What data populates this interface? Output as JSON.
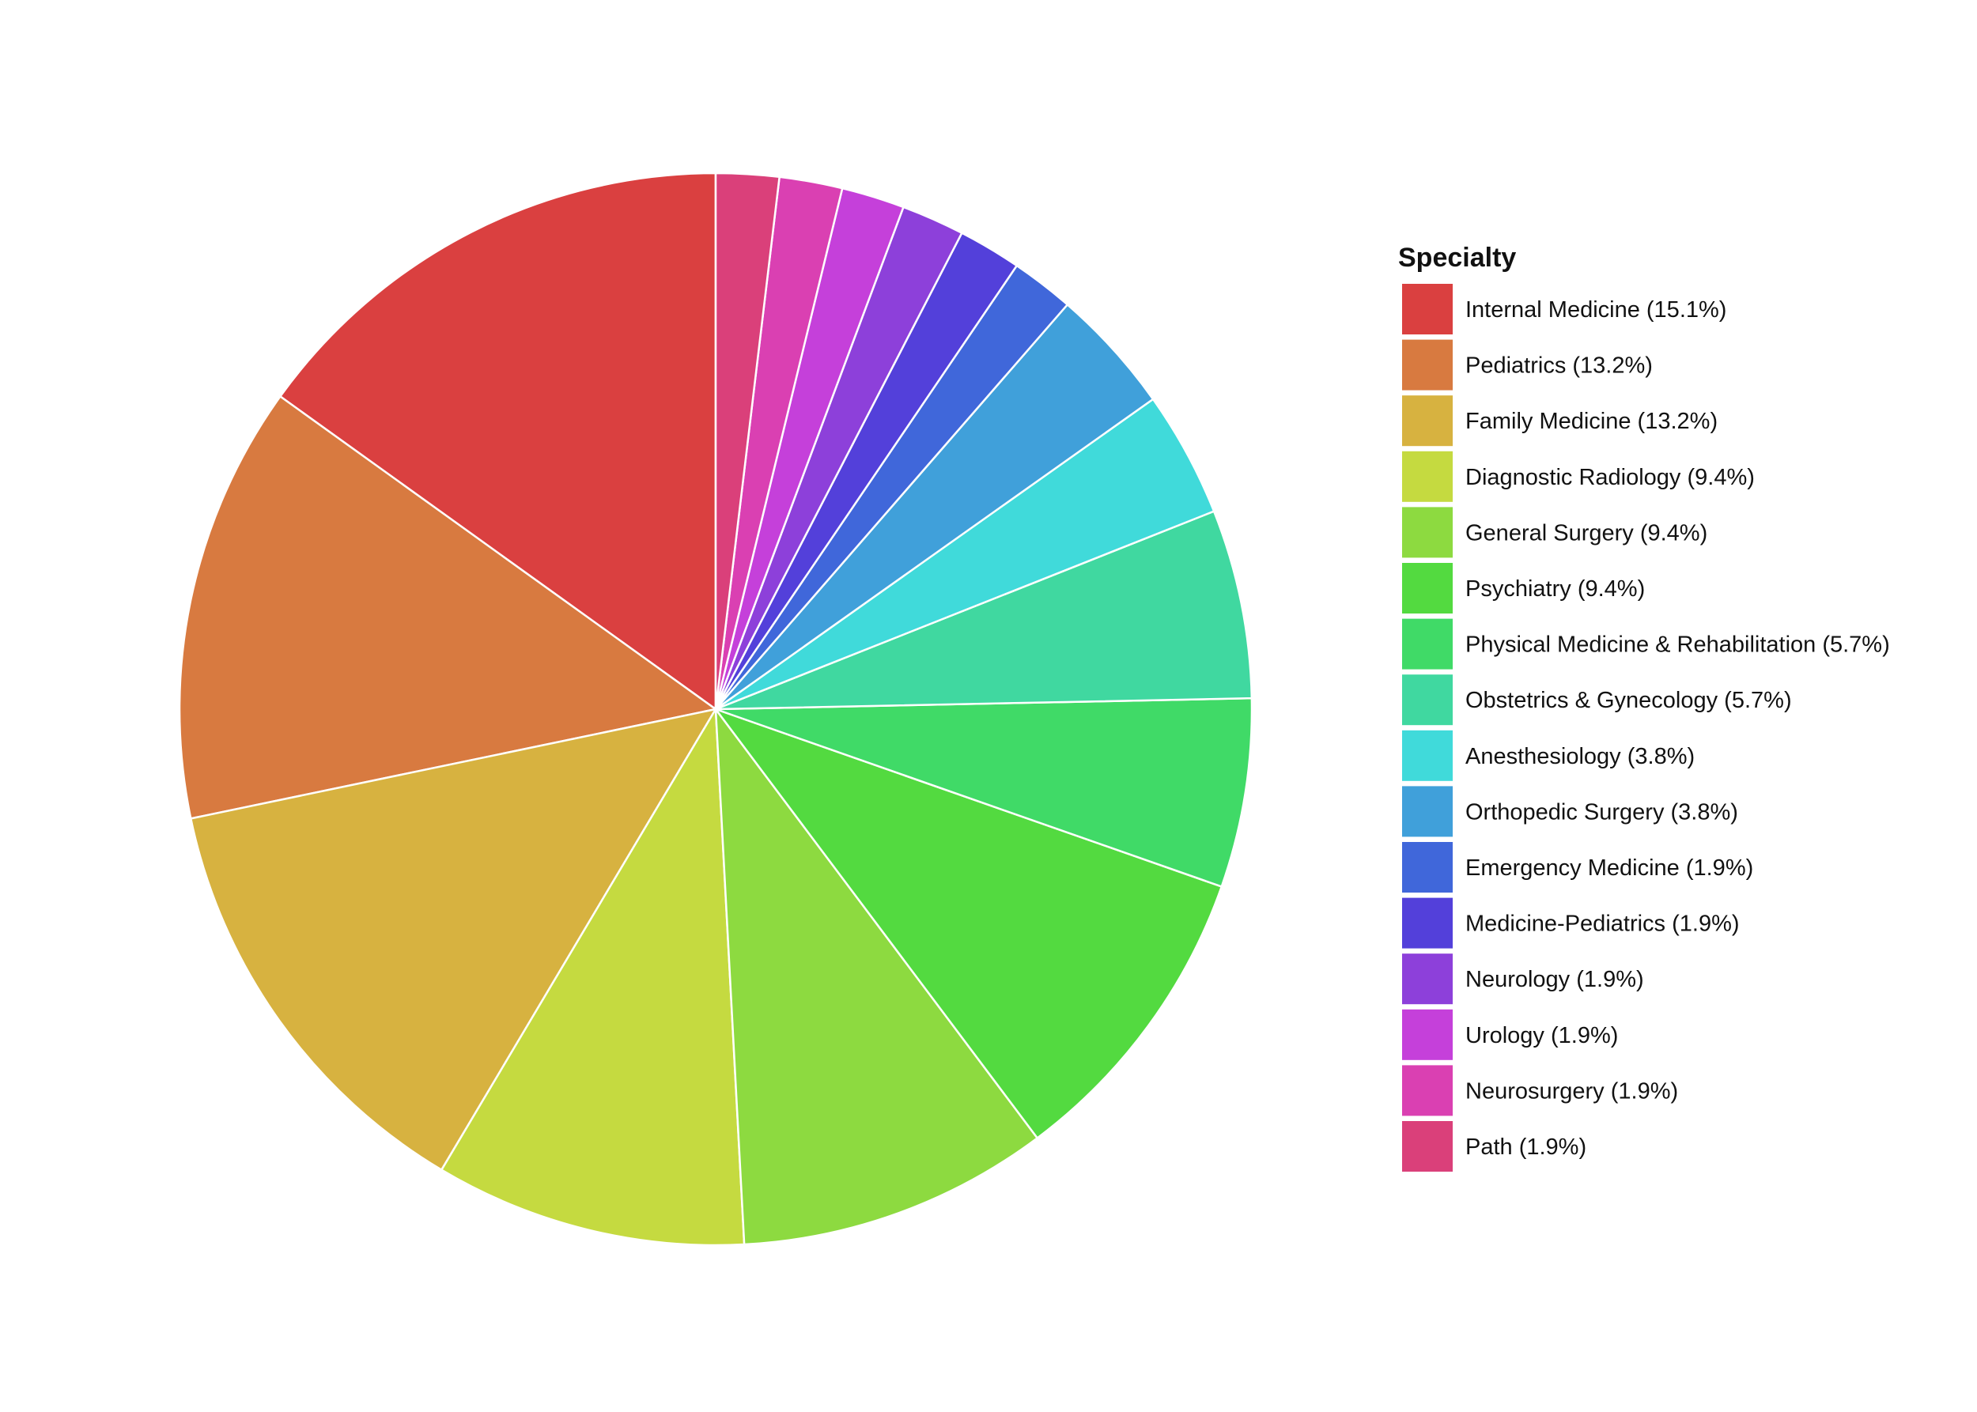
{
  "chart_data": {
    "type": "pie",
    "title": "",
    "legend_title": "Specialty",
    "legend_position": "right",
    "slices": [
      {
        "label": "Internal Medicine (15.1%)",
        "value": 15.1,
        "color": "#DA4040"
      },
      {
        "label": "Pediatrics (13.2%)",
        "value": 13.2,
        "color": "#D87A40"
      },
      {
        "label": "Family Medicine (13.2%)",
        "value": 13.2,
        "color": "#D7B240"
      },
      {
        "label": "Diagnostic Radiology (9.4%)",
        "value": 9.4,
        "color": "#C5DA40"
      },
      {
        "label": "General Surgery (9.4%)",
        "value": 9.4,
        "color": "#8DDA40"
      },
      {
        "label": "Psychiatry (9.4%)",
        "value": 9.4,
        "color": "#53DA40"
      },
      {
        "label": "Physical Medicine & Rehabilitation (5.7%)",
        "value": 5.7,
        "color": "#40DA67"
      },
      {
        "label": "Obstetrics & Gynecology (5.7%)",
        "value": 5.7,
        "color": "#40D8A0"
      },
      {
        "label": "Anesthesiology (3.8%)",
        "value": 3.8,
        "color": "#40DADA"
      },
      {
        "label": "Orthopedic Surgery (3.8%)",
        "value": 3.8,
        "color": "#40A0DA"
      },
      {
        "label": "Emergency Medicine (1.9%)",
        "value": 1.9,
        "color": "#4067DA"
      },
      {
        "label": "Medicine-Pediatrics (1.9%)",
        "value": 1.9,
        "color": "#5340DA"
      },
      {
        "label": "Neurology (1.9%)",
        "value": 1.9,
        "color": "#8D40DA"
      },
      {
        "label": "Urology (1.9%)",
        "value": 1.9,
        "color": "#C540DA"
      },
      {
        "label": "Neurosurgery (1.9%)",
        "value": 1.9,
        "color": "#DA40B2"
      },
      {
        "label": "Path (1.9%)",
        "value": 1.9,
        "color": "#DA407A"
      }
    ]
  }
}
